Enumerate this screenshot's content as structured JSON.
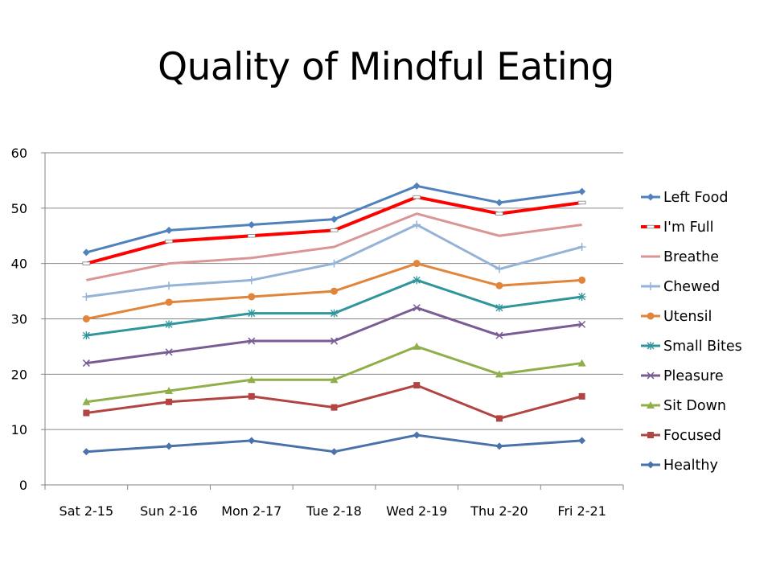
{
  "title": "Quality of Mindful Eating",
  "chart_data": {
    "type": "line",
    "title": "Quality of Mindful Eating",
    "xlabel": "",
    "ylabel": "",
    "categories": [
      "Sat 2-15",
      "Sun 2-16",
      "Mon 2-17",
      "Tue 2-18",
      "Wed 2-19",
      "Thu 2-20",
      "Fri 2-21"
    ],
    "ylim": [
      0,
      60
    ],
    "yticks": [
      0,
      10,
      20,
      30,
      40,
      50,
      60
    ],
    "grid": true,
    "legend_position": "right",
    "series": [
      {
        "name": "Left Food",
        "color": "#4F81BD",
        "marker": "diamond",
        "width": 3,
        "values": [
          42,
          46,
          47,
          48,
          54,
          51,
          53
        ]
      },
      {
        "name": "I'm Full",
        "color": "#FF0000",
        "marker": "dash",
        "width": 4,
        "values": [
          40,
          44,
          45,
          46,
          52,
          49,
          51
        ]
      },
      {
        "name": "Breathe",
        "color": "#D99694",
        "marker": "none",
        "width": 3,
        "values": [
          37,
          40,
          41,
          43,
          49,
          45,
          47
        ]
      },
      {
        "name": "Chewed",
        "color": "#95B3D7",
        "marker": "plus",
        "width": 3,
        "values": [
          34,
          36,
          37,
          40,
          47,
          39,
          43
        ]
      },
      {
        "name": "Utensil",
        "color": "#E0853A",
        "marker": "circle",
        "width": 3,
        "values": [
          30,
          33,
          34,
          35,
          40,
          36,
          37
        ]
      },
      {
        "name": "Small Bites",
        "color": "#31959C",
        "marker": "star",
        "width": 3,
        "values": [
          27,
          29,
          31,
          31,
          37,
          32,
          34
        ]
      },
      {
        "name": "Pleasure",
        "color": "#7A5C94",
        "marker": "x",
        "width": 3,
        "values": [
          22,
          24,
          26,
          26,
          32,
          27,
          29
        ]
      },
      {
        "name": "Sit Down",
        "color": "#8FAF4A",
        "marker": "triangle",
        "width": 3,
        "values": [
          15,
          17,
          19,
          19,
          25,
          20,
          22
        ]
      },
      {
        "name": "Focused",
        "color": "#B24442",
        "marker": "square",
        "width": 3,
        "values": [
          13,
          15,
          16,
          14,
          18,
          12,
          16
        ]
      },
      {
        "name": "Healthy",
        "color": "#4A72A8",
        "marker": "diamond",
        "width": 3,
        "values": [
          6,
          7,
          8,
          6,
          9,
          7,
          8
        ]
      }
    ]
  }
}
